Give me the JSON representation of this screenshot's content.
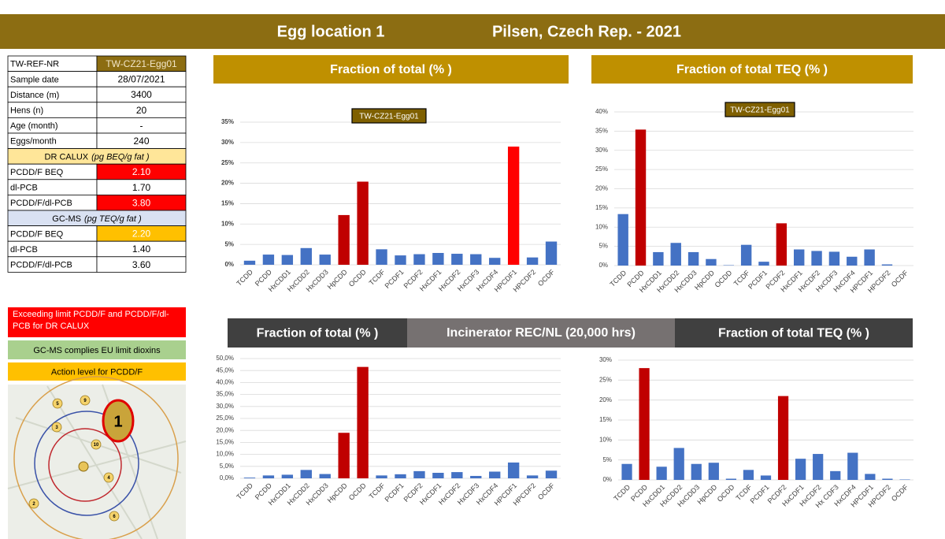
{
  "header": {
    "title": "Egg location 1",
    "subtitle": "Pilsen,  Czech Rep. - 2021"
  },
  "table": {
    "rows": [
      {
        "label": "TW-REF-NR",
        "value": "TW-CZ21-Egg01",
        "color": "#8c6d12"
      },
      {
        "label": "Sample date",
        "value": "28/07/2021"
      },
      {
        "label": "Distance (m)",
        "value": "3400"
      },
      {
        "label": "Hens (n)",
        "value": "20"
      },
      {
        "label": "Age (month)",
        "value": "-"
      },
      {
        "label": "Eggs/month",
        "value": "240"
      },
      {
        "section": "DR CALUX",
        "unit": "(pg BEQ/g fat )",
        "color": "#ffe699"
      },
      {
        "label": "PCDD/F BEQ",
        "value": "2.10",
        "color": "#ff0000"
      },
      {
        "label": "dl-PCB",
        "value": "1.70"
      },
      {
        "label": "PCDD/F/dl-PCB",
        "value": "3.80",
        "color": "#ff0000"
      },
      {
        "section": "GC-MS",
        "unit": "(pg TEQ/g fat )",
        "color": "#d9e1f2"
      },
      {
        "label": "PCDD/F BEQ",
        "value": "2.20",
        "color": "#ffc000"
      },
      {
        "label": "dl-PCB",
        "value": "1.40"
      },
      {
        "label": "PCDD/F/dl-PCB",
        "value": "3.60"
      }
    ]
  },
  "notes": [
    {
      "text": "Exceeding limit PCDD/F and PCDD/F/dl-PCB  for DR CALUX",
      "color": "#ff0000"
    },
    {
      "text": "GC-MS complies EU limit dioxins",
      "color": "#a9d08e"
    },
    {
      "text": "Action level for PCDD/F",
      "color": "#ffc000"
    }
  ],
  "map": {
    "highlight": "1",
    "markers": [
      "5",
      "9",
      "3",
      "10",
      "4",
      "2",
      "6"
    ]
  },
  "section_title": "Incinerator REC/NL (20,000 hrs)",
  "chart_data": [
    {
      "type": "bar",
      "title": "Fraction of total (% )",
      "categories": [
        "TCDD",
        "PCDD",
        "HxCDD1",
        "HxCDD2",
        "HxCDD3",
        "HpCDD",
        "OCDD",
        "TCDF",
        "PCDF1",
        "PCDF2",
        "HxCDF1",
        "HxCDF2",
        "HxCDF3",
        "HxCDF4",
        "HPCDF1",
        "HPCDF2",
        "OCDF"
      ],
      "series": [
        {
          "name": "TW-CZ21-Egg01",
          "values": [
            1.0,
            2.5,
            2.4,
            4.1,
            2.5,
            12.2,
            20.4,
            3.8,
            2.3,
            2.6,
            2.9,
            2.7,
            2.6,
            1.7,
            29.0,
            1.8,
            5.7
          ],
          "colors": [
            "#4472c4",
            "#4472c4",
            "#4472c4",
            "#4472c4",
            "#4472c4",
            "#c00000",
            "#c00000",
            "#4472c4",
            "#4472c4",
            "#4472c4",
            "#4472c4",
            "#4472c4",
            "#4472c4",
            "#4472c4",
            "#ff0000",
            "#4472c4",
            "#4472c4"
          ]
        }
      ],
      "ylim": [
        0,
        35
      ],
      "yticks": [
        {
          "value": 0,
          "label": "0%"
        },
        {
          "value": 5,
          "label": "5%"
        },
        {
          "value": 10,
          "label": "10%"
        },
        {
          "value": 15,
          "label": "15%"
        },
        {
          "value": 20,
          "label": "20%"
        },
        {
          "value": 25,
          "label": "25%"
        },
        {
          "value": 30,
          "label": "30%"
        },
        {
          "value": 35,
          "label": "35%"
        }
      ],
      "grid": true
    },
    {
      "type": "bar",
      "title": "Fraction of total TEQ (% )",
      "categories": [
        "TCDD",
        "PCDD",
        "HxCDD1",
        "HxCDD2",
        "HxCDD3",
        "HpCDD",
        "OCDD",
        "TCDF",
        "PCDF1",
        "PCDF2",
        "HxCDF1",
        "HxCDF2",
        "HxCDF3",
        "HxCDF4",
        "HPCDF1",
        "HPCDF2",
        "OCDF"
      ],
      "series": [
        {
          "name": "TW-CZ21-Egg01",
          "values": [
            13.4,
            35.4,
            3.5,
            5.9,
            3.5,
            1.7,
            0.1,
            5.4,
            1.0,
            11.0,
            4.2,
            3.8,
            3.6,
            2.3,
            4.2,
            0.3,
            0
          ],
          "colors": [
            "#4472c4",
            "#c00000",
            "#4472c4",
            "#4472c4",
            "#4472c4",
            "#4472c4",
            "#4472c4",
            "#4472c4",
            "#4472c4",
            "#c00000",
            "#4472c4",
            "#4472c4",
            "#4472c4",
            "#4472c4",
            "#4472c4",
            "#4472c4",
            "#4472c4"
          ]
        }
      ],
      "ylim": [
        0,
        40
      ],
      "yticks": [
        {
          "value": 0,
          "label": "0%"
        },
        {
          "value": 5,
          "label": "5%"
        },
        {
          "value": 10,
          "label": "10%"
        },
        {
          "value": 15,
          "label": "15%"
        },
        {
          "value": 20,
          "label": "20%"
        },
        {
          "value": 25,
          "label": "25%"
        },
        {
          "value": 30,
          "label": "30%"
        },
        {
          "value": 35,
          "label": "35%"
        },
        {
          "value": 40,
          "label": "40%"
        }
      ],
      "grid": true
    },
    {
      "type": "bar",
      "title": "Fraction of total (% )",
      "categories": [
        "TCDD",
        "PCDD",
        "HxCDD1",
        "HxCDD2",
        "HxCDD3",
        "HpCDD",
        "OCDD",
        "TCDF",
        "PCDF1",
        "PCDF2",
        "HxCDF1",
        "HxCDF2",
        "HxCDF3",
        "HxCDF4",
        "HPCDF1",
        "HPCDF2",
        "OCDF"
      ],
      "series": [
        {
          "values": [
            0.3,
            1.2,
            1.5,
            3.5,
            1.8,
            19.0,
            46.5,
            1.2,
            1.7,
            3.0,
            2.3,
            2.6,
            1.0,
            2.8,
            6.6,
            1.2,
            3.2
          ],
          "colors": [
            "#4472c4",
            "#4472c4",
            "#4472c4",
            "#4472c4",
            "#4472c4",
            "#c00000",
            "#c00000",
            "#4472c4",
            "#4472c4",
            "#4472c4",
            "#4472c4",
            "#4472c4",
            "#4472c4",
            "#4472c4",
            "#4472c4",
            "#4472c4",
            "#4472c4"
          ]
        }
      ],
      "ylim": [
        0,
        50
      ],
      "yticks": [
        {
          "value": 0,
          "label": "0,0%"
        },
        {
          "value": 5,
          "label": "5,0%"
        },
        {
          "value": 10,
          "label": "10,0%"
        },
        {
          "value": 15,
          "label": "15,0%"
        },
        {
          "value": 20,
          "label": "20,0%"
        },
        {
          "value": 25,
          "label": "25,0%"
        },
        {
          "value": 30,
          "label": "30,0%"
        },
        {
          "value": 35,
          "label": "35,0%"
        },
        {
          "value": 40,
          "label": "40,0%"
        },
        {
          "value": 45,
          "label": "45,0%"
        },
        {
          "value": 50,
          "label": "50,0%"
        }
      ],
      "grid": true
    },
    {
      "type": "bar",
      "title": "Fraction of total TEQ (% )",
      "categories": [
        "TCDD",
        "PCDD",
        "HxCDD1",
        "HxCDD2",
        "HxCDD3",
        "HpCDD",
        "OCDD",
        "TCDF",
        "PCDF1",
        "PCDF2",
        "HxCDF1",
        "HxCDF2",
        "Hx CDF3",
        "HxCDF4",
        "HPCDF1",
        "HPCDF2",
        "OCDF"
      ],
      "series": [
        {
          "values": [
            4.0,
            28.0,
            3.3,
            8.0,
            4.0,
            4.3,
            0.3,
            2.5,
            1.1,
            21.0,
            5.3,
            6.5,
            2.2,
            6.8,
            1.5,
            0.3,
            0.1
          ],
          "colors": [
            "#4472c4",
            "#c00000",
            "#4472c4",
            "#4472c4",
            "#4472c4",
            "#4472c4",
            "#4472c4",
            "#4472c4",
            "#4472c4",
            "#c00000",
            "#4472c4",
            "#4472c4",
            "#4472c4",
            "#4472c4",
            "#4472c4",
            "#4472c4",
            "#4472c4"
          ]
        }
      ],
      "ylim": [
        0,
        30
      ],
      "yticks": [
        {
          "value": 0,
          "label": "0%"
        },
        {
          "value": 5,
          "label": "5%"
        },
        {
          "value": 10,
          "label": "10%"
        },
        {
          "value": 15,
          "label": "15%"
        },
        {
          "value": 20,
          "label": "20%"
        },
        {
          "value": 25,
          "label": "25%"
        },
        {
          "value": 30,
          "label": "30%"
        }
      ],
      "grid": true
    }
  ]
}
